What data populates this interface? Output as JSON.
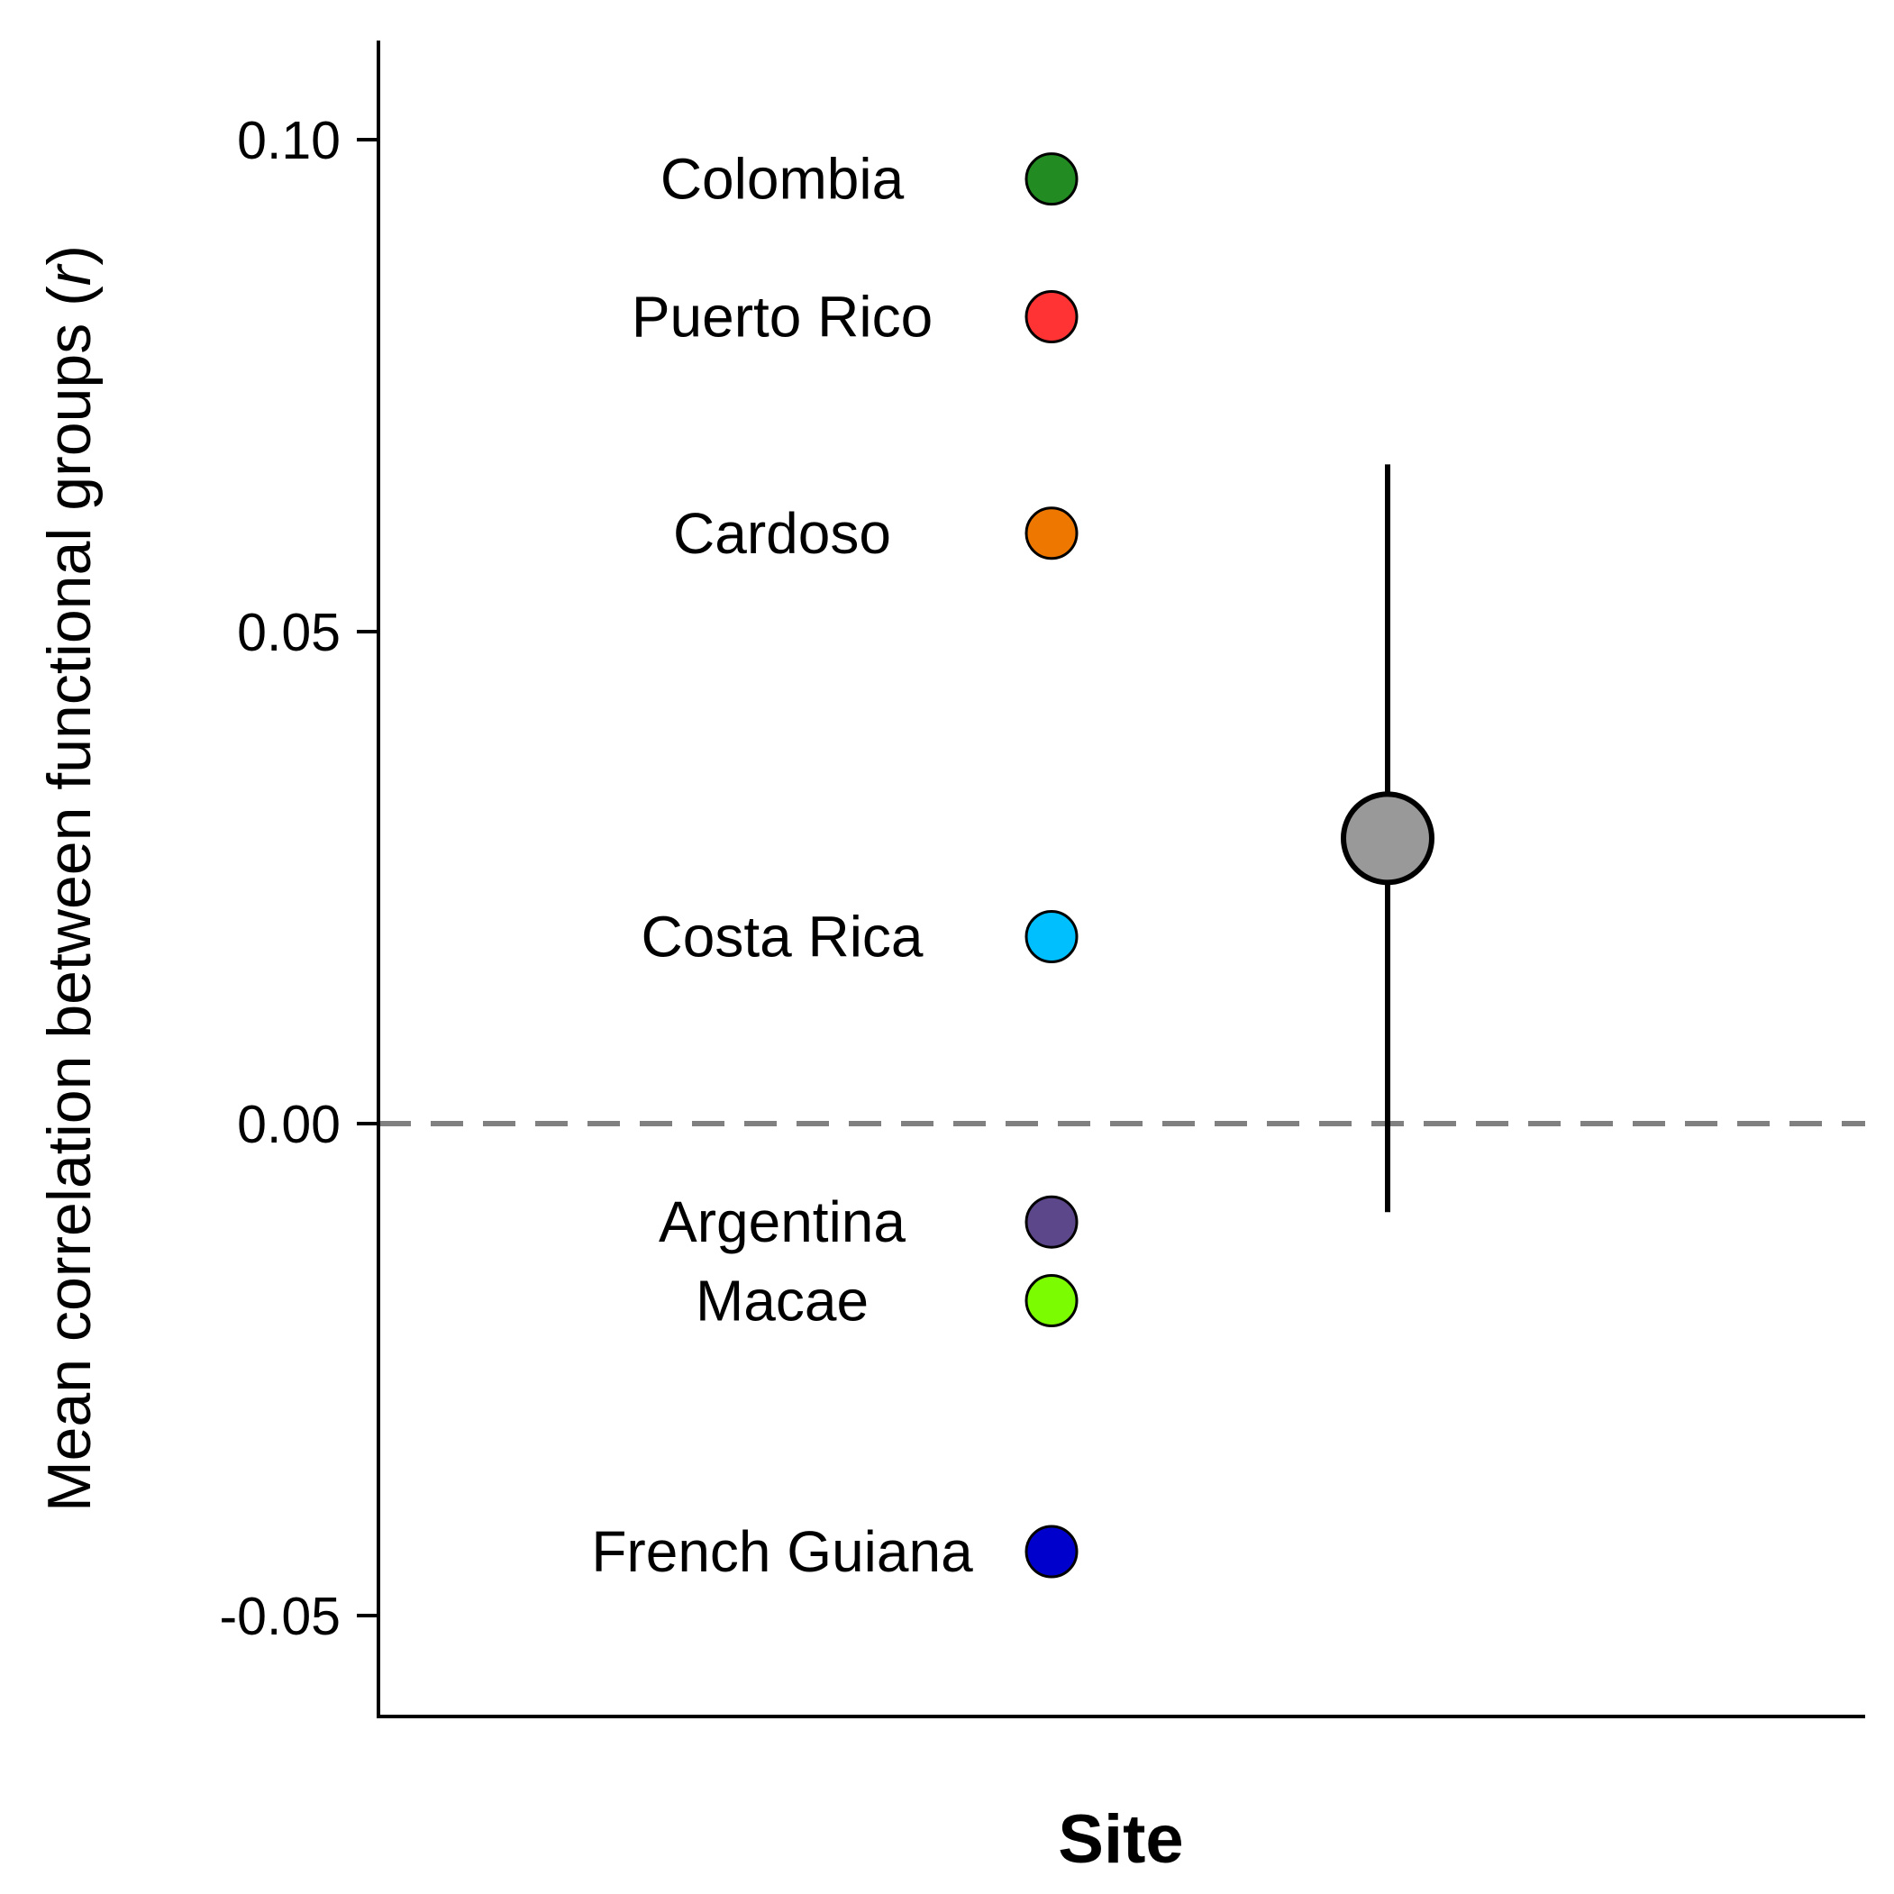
{
  "chart_data": {
    "type": "scatter",
    "xlabel": "Site",
    "ylabel": {
      "main": "Mean correlation between functional groups (",
      "symbol": "r",
      "close": ")"
    },
    "ylim": [
      -0.06,
      0.11
    ],
    "yticks": [
      {
        "value": 0.1,
        "label": "0.10"
      },
      {
        "value": 0.05,
        "label": "0.05"
      },
      {
        "value": 0.0,
        "label": "0.00"
      },
      {
        "value": -0.05,
        "label": "-0.05"
      }
    ],
    "reference_line": {
      "y": 0.0,
      "style": "dashed",
      "color": "#808080"
    },
    "grid": false,
    "sites": [
      {
        "name": "Colombia",
        "value": 0.096,
        "color": "#228B22"
      },
      {
        "name": "Puerto Rico",
        "value": 0.082,
        "color": "#FF3333"
      },
      {
        "name": "Cardoso",
        "value": 0.06,
        "color": "#EE7700"
      },
      {
        "name": "Costa Rica",
        "value": 0.019,
        "color": "#00BFFF"
      },
      {
        "name": "Argentina",
        "value": -0.01,
        "color": "#5D478B"
      },
      {
        "name": "Macae",
        "value": -0.018,
        "color": "#7CFC00"
      },
      {
        "name": "French Guiana",
        "value": -0.0435,
        "color": "#0000CD"
      }
    ],
    "overall": {
      "mean": 0.029,
      "lower": -0.009,
      "upper": 0.067,
      "color": "#999999"
    }
  }
}
